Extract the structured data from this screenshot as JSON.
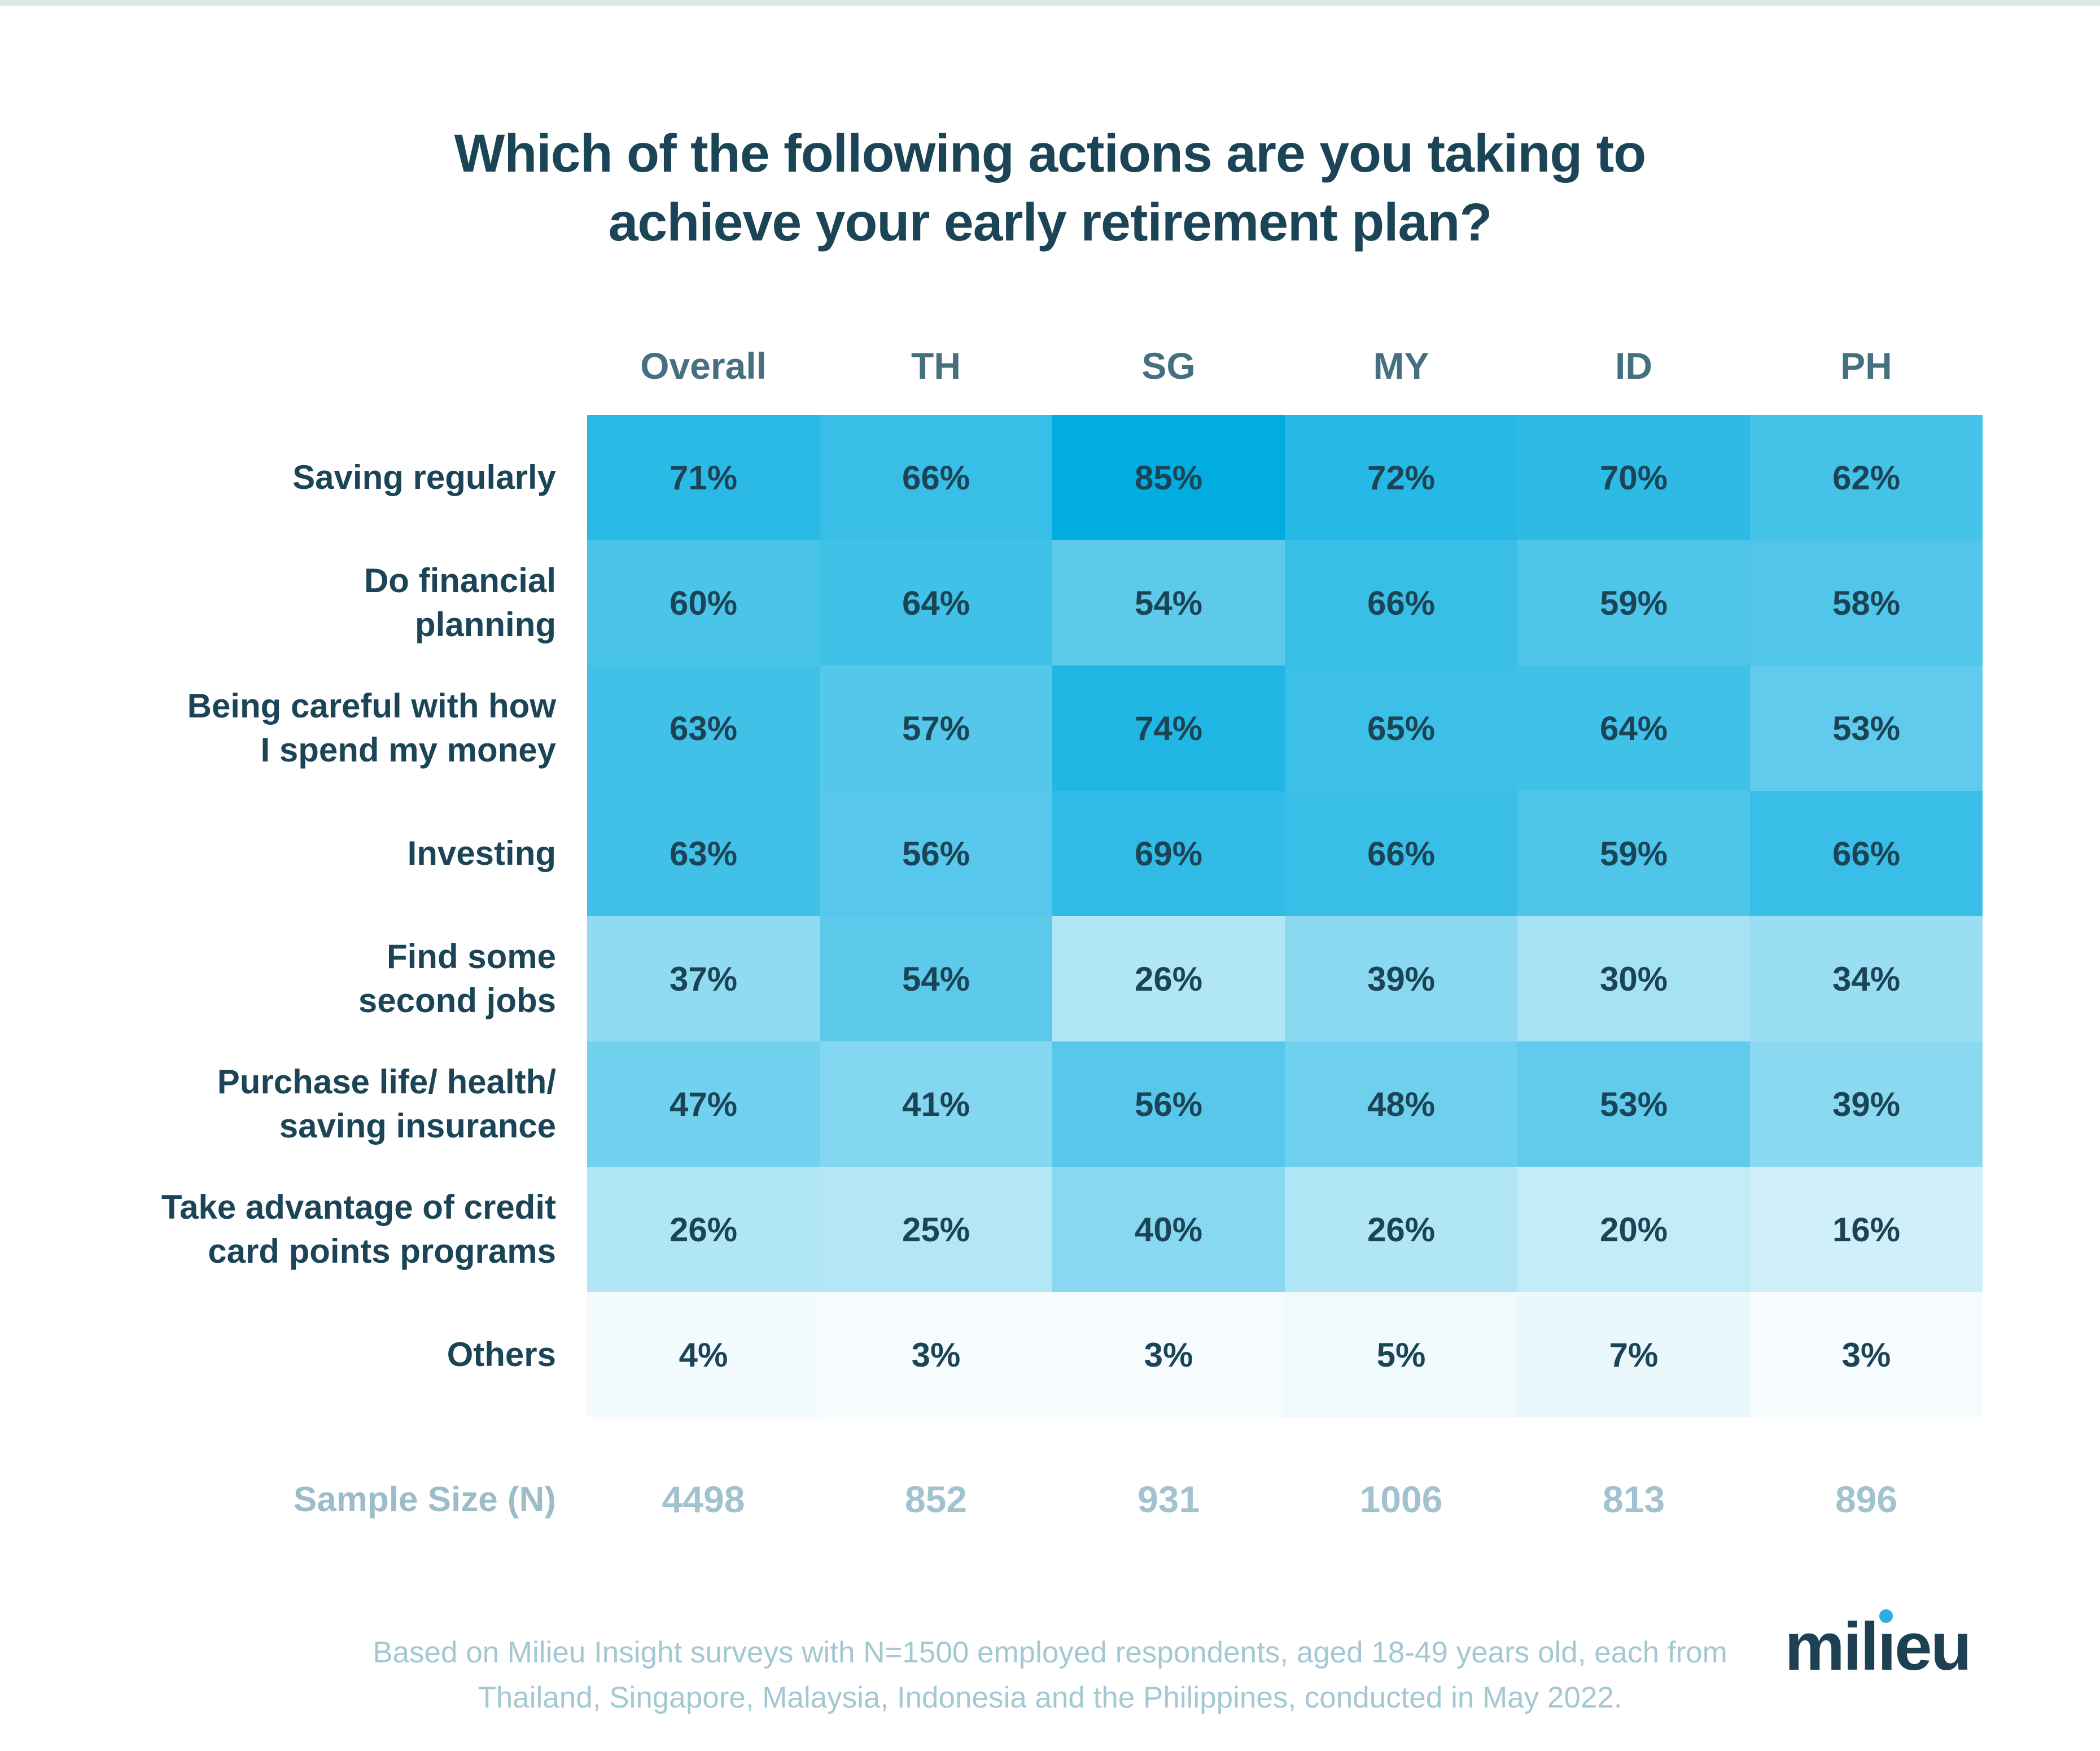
{
  "page": {
    "title_lines": [
      "Which of the following actions are you taking to",
      "achieve your early retirement plan?"
    ],
    "footnote_lines": [
      "Based on Milieu Insight surveys with N=1500 employed respondents, aged 18-49 years old, each from",
      "Thailand, Singapore, Malaysia, Indonesia and the Philippines, conducted in May 2022."
    ],
    "logo": {
      "pre": "mil",
      "accent_i": "ı",
      "post": "eu"
    },
    "colors": {
      "top_strip": "#dae9e3",
      "title_text": "#1b4556",
      "header_text": "#46707f",
      "cell_text": "#1b4556",
      "muted_text": "#a2c2cf",
      "logo_dark": "#1d4152",
      "logo_dot": "#2cace3"
    }
  },
  "chart_data": {
    "type": "heatmap",
    "title": "Which of the following actions are you taking to achieve your early retirement plan?",
    "columns": [
      "Overall",
      "TH",
      "SG",
      "MY",
      "ID",
      "PH"
    ],
    "rows": [
      {
        "label_lines": [
          "Saving regularly"
        ],
        "values": [
          71,
          66,
          85,
          72,
          70,
          62
        ]
      },
      {
        "label_lines": [
          "Do financial",
          "planning"
        ],
        "values": [
          60,
          64,
          54,
          66,
          59,
          58
        ]
      },
      {
        "label_lines": [
          "Being careful with how",
          "I spend my money"
        ],
        "values": [
          63,
          57,
          74,
          65,
          64,
          53
        ]
      },
      {
        "label_lines": [
          "Investing"
        ],
        "values": [
          63,
          56,
          69,
          66,
          59,
          66
        ]
      },
      {
        "label_lines": [
          "Find some",
          "second jobs"
        ],
        "values": [
          37,
          54,
          26,
          39,
          30,
          34
        ]
      },
      {
        "label_lines": [
          "Purchase life/ health/",
          "saving insurance"
        ],
        "values": [
          47,
          41,
          56,
          48,
          53,
          39
        ]
      },
      {
        "label_lines": [
          "Take advantage of credit",
          "card points programs"
        ],
        "values": [
          26,
          25,
          40,
          26,
          20,
          16
        ]
      },
      {
        "label_lines": [
          "Others"
        ],
        "values": [
          4,
          3,
          3,
          5,
          7,
          3
        ]
      }
    ],
    "value_suffix": "%",
    "sample_size": {
      "label": "Sample Size (N)",
      "values": [
        4498,
        852,
        931,
        1006,
        813,
        896
      ]
    },
    "color_scale": {
      "min_color": "#ffffff",
      "max_color": "#00ace0",
      "max_value": 85
    },
    "legend": "none",
    "grid": "off"
  }
}
